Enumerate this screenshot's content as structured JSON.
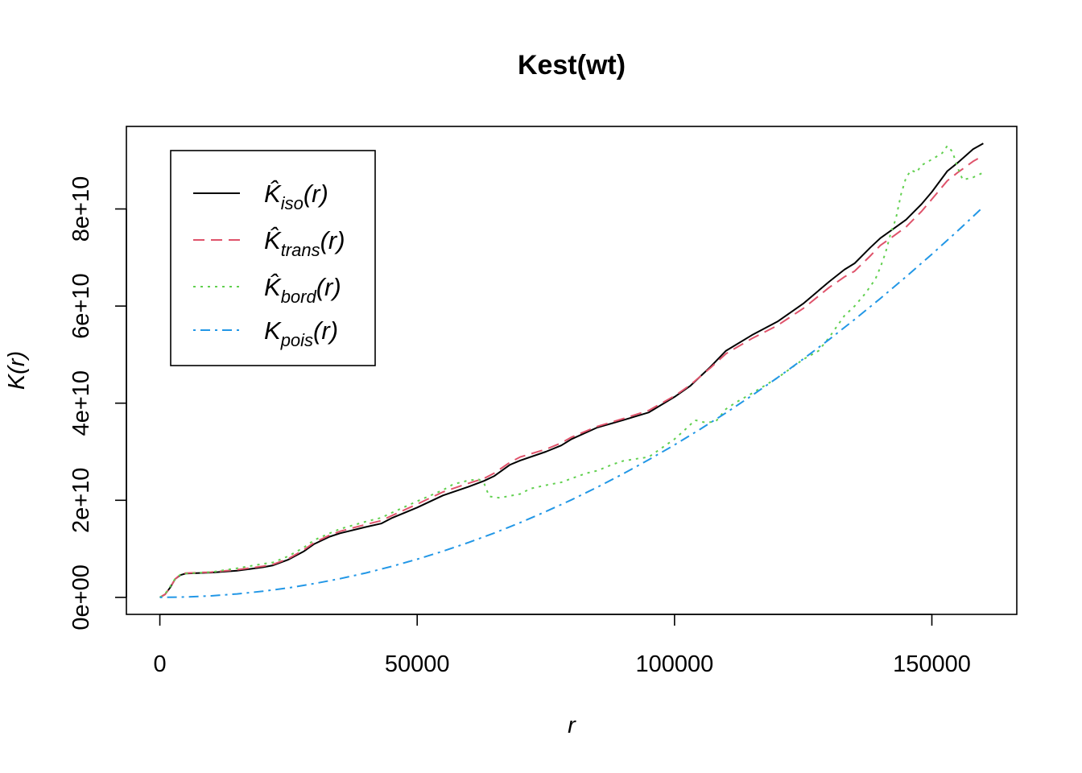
{
  "chart_data": {
    "type": "line",
    "title": "Kest(wt)",
    "xlabel": "r",
    "ylabel": "K(r)",
    "xlim": [
      -6500,
      166500
    ],
    "ylim": [
      -3500000000,
      97000000000
    ],
    "xticks": [
      0,
      50000,
      100000,
      150000
    ],
    "xtick_labels": [
      "0",
      "50000",
      "100000",
      "150000"
    ],
    "yticks": [
      0,
      20000000000,
      40000000000,
      60000000000,
      80000000000
    ],
    "ytick_labels": [
      "0e+00",
      "2e+10",
      "4e+10",
      "6e+10",
      "8e+10"
    ],
    "grid": false,
    "legend_position": "top-left",
    "series": [
      {
        "name": "K̂iso(r)",
        "label_main": "K̂",
        "label_sub": "iso",
        "label_tail": "(r)",
        "color": "#000000",
        "dash": "solid",
        "x": [
          0,
          1000,
          2000,
          3000,
          4000,
          5000,
          10000,
          15000,
          20000,
          22000,
          25000,
          28000,
          30000,
          33000,
          35000,
          40000,
          43000,
          45000,
          50000,
          55000,
          60000,
          63000,
          65000,
          68000,
          70000,
          75000,
          78000,
          80000,
          85000,
          90000,
          95000,
          100000,
          103000,
          107000,
          110000,
          115000,
          120000,
          125000,
          130000,
          133000,
          135000,
          138000,
          140000,
          142000,
          145000,
          148000,
          150000,
          153000,
          155000,
          158000,
          160000
        ],
        "y": [
          0,
          600000000,
          2000000000,
          3800000000,
          4600000000,
          4900000000,
          5100000000,
          5500000000,
          6200000000,
          6600000000,
          7800000000,
          9500000000,
          11000000000,
          12500000000,
          13200000000,
          14500000000,
          15200000000,
          16300000000,
          18500000000,
          21000000000,
          22800000000,
          24000000000,
          25000000000,
          27300000000,
          28200000000,
          30000000000,
          31300000000,
          32600000000,
          35000000000,
          36500000000,
          38100000000,
          41300000000,
          43500000000,
          47500000000,
          50800000000,
          54000000000,
          56800000000,
          60500000000,
          65000000000,
          67500000000,
          68800000000,
          72000000000,
          74000000000,
          75500000000,
          77800000000,
          81000000000,
          83500000000,
          87800000000,
          89500000000,
          92300000000,
          93500000000
        ]
      },
      {
        "name": "K̂trans(r)",
        "label_main": "K̂",
        "label_sub": "trans",
        "label_tail": "(r)",
        "color": "#DF536B",
        "dash": "dashed",
        "x": [
          0,
          1000,
          2000,
          3000,
          4000,
          5000,
          10000,
          15000,
          20000,
          22000,
          25000,
          28000,
          30000,
          33000,
          35000,
          40000,
          43000,
          45000,
          50000,
          55000,
          60000,
          63000,
          65000,
          68000,
          70000,
          75000,
          78000,
          80000,
          85000,
          90000,
          95000,
          100000,
          103000,
          107000,
          110000,
          115000,
          120000,
          125000,
          130000,
          133000,
          135000,
          138000,
          140000,
          142000,
          145000,
          148000,
          150000,
          153000,
          155000,
          158000,
          160000
        ],
        "y": [
          0,
          600000000,
          2000000000,
          3800000000,
          4700000000,
          5000000000,
          5200000000,
          5700000000,
          6400000000,
          6800000000,
          8000000000,
          9800000000,
          11300000000,
          12800000000,
          13600000000,
          15000000000,
          15800000000,
          16800000000,
          19200000000,
          21700000000,
          23500000000,
          24500000000,
          25600000000,
          27800000000,
          28900000000,
          30500000000,
          31800000000,
          33000000000,
          35200000000,
          36800000000,
          38500000000,
          41500000000,
          43700000000,
          47300000000,
          50200000000,
          53300000000,
          56000000000,
          59500000000,
          63800000000,
          66000000000,
          67200000000,
          70300000000,
          72500000000,
          74000000000,
          76300000000,
          79500000000,
          82000000000,
          85800000000,
          87500000000,
          89800000000,
          91000000000
        ]
      },
      {
        "name": "K̂bord(r)",
        "label_main": "K̂",
        "label_sub": "bord",
        "label_tail": "(r)",
        "color": "#61D04F",
        "dash": "dotted",
        "x": [
          0,
          1000,
          2000,
          3000,
          4000,
          5000,
          10000,
          15000,
          20000,
          22000,
          25000,
          28000,
          30000,
          33000,
          35000,
          40000,
          43000,
          45000,
          50000,
          55000,
          57000,
          60000,
          62000,
          63000,
          64000,
          66000,
          68000,
          70000,
          72000,
          75000,
          78000,
          80000,
          83000,
          85000,
          88000,
          90000,
          93000,
          95000,
          97000,
          100000,
          102000,
          104000,
          106000,
          108000,
          110000,
          112000,
          115000,
          120000,
          125000,
          128000,
          130000,
          133000,
          135000,
          137000,
          139000,
          140000,
          141000,
          142000,
          143000,
          144000,
          145000,
          146000,
          147000,
          148000,
          150000,
          152000,
          153000,
          154000,
          155000,
          156000,
          158000,
          160000
        ],
        "y": [
          0,
          700000000,
          2200000000,
          3900000000,
          4700000000,
          4900000000,
          5200000000,
          6000000000,
          6900000000,
          7200000000,
          8500000000,
          10300000000,
          11800000000,
          13200000000,
          14100000000,
          15600000000,
          16400000000,
          17400000000,
          19800000000,
          22100000000,
          23300000000,
          24100000000,
          24300000000,
          23500000000,
          20800000000,
          20500000000,
          20900000000,
          21300000000,
          22400000000,
          23100000000,
          23700000000,
          24500000000,
          25600000000,
          26100000000,
          27400000000,
          28100000000,
          28600000000,
          28900000000,
          30400000000,
          32600000000,
          34500000000,
          36500000000,
          36000000000,
          36200000000,
          38800000000,
          40200000000,
          42000000000,
          45200000000,
          49000000000,
          50800000000,
          53500000000,
          58000000000,
          60000000000,
          62500000000,
          65500000000,
          68000000000,
          71000000000,
          75000000000,
          78000000000,
          83000000000,
          86500000000,
          88000000000,
          87500000000,
          89000000000,
          90200000000,
          91500000000,
          93000000000,
          91800000000,
          88500000000,
          86000000000,
          86500000000,
          87500000000
        ]
      },
      {
        "name": "Kpois(r)",
        "label_main": "K",
        "label_sub": "pois",
        "label_tail": "(r)",
        "color": "#2297E6",
        "dash": "dotdash",
        "x": [
          0,
          5000,
          10000,
          15000,
          20000,
          25000,
          30000,
          35000,
          40000,
          45000,
          50000,
          55000,
          60000,
          65000,
          70000,
          75000,
          80000,
          85000,
          90000,
          95000,
          100000,
          105000,
          110000,
          115000,
          120000,
          125000,
          130000,
          135000,
          140000,
          145000,
          150000,
          155000,
          160000
        ],
        "y": [
          0,
          78500000,
          314000000,
          707000000,
          1257000000,
          1963000000,
          2827000000,
          3848000000,
          5027000000,
          6362000000,
          7854000000,
          9503000000,
          11310000000,
          13273000000,
          15394000000,
          17671000000,
          20106000000,
          22698000000,
          25447000000,
          28353000000,
          31416000000,
          34636000000,
          38013000000,
          41548000000,
          45239000000,
          49087000000,
          53093000000,
          57256000000,
          61575000000,
          66052000000,
          70686000000,
          75477000000,
          80425000000
        ]
      }
    ]
  }
}
